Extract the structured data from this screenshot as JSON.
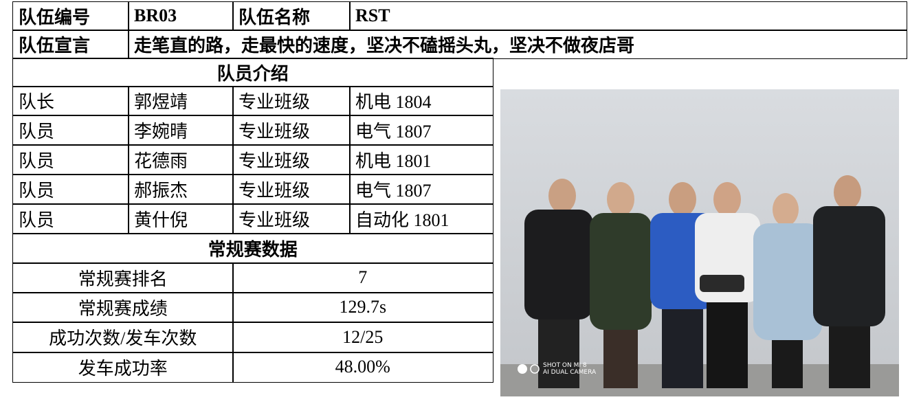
{
  "header": {
    "team_id_label": "队伍编号",
    "team_id": "BR03",
    "team_name_label": "队伍名称",
    "team_name": "RST",
    "slogan_label": "队伍宣言",
    "slogan": "走笔直的路，走最快的速度，坚决不磕摇头丸，坚决不做夜店哥"
  },
  "members": {
    "title": "队员介绍",
    "rows": [
      [
        "队长",
        "郭煜靖",
        "专业班级",
        "机电 1804"
      ],
      [
        "队员",
        "李婉晴",
        "专业班级",
        "电气 1807"
      ],
      [
        "队员",
        "花德雨",
        "专业班级",
        "机电 1801"
      ],
      [
        "队员",
        "郝振杰",
        "专业班级",
        "电气 1807"
      ],
      [
        "队员",
        "黄什倪",
        "专业班级",
        "自动化 1801"
      ]
    ]
  },
  "stats": {
    "title": "常规赛数据",
    "rows": [
      [
        "常规赛排名",
        "7"
      ],
      [
        "常规赛成绩",
        "129.7s"
      ],
      [
        "成功次数/发车次数",
        "12/25"
      ],
      [
        "发车成功率",
        "48.00%"
      ]
    ]
  },
  "photo": {
    "watermark": [
      "SHOT ON MI 8",
      "AI DUAL CAMERA"
    ]
  }
}
